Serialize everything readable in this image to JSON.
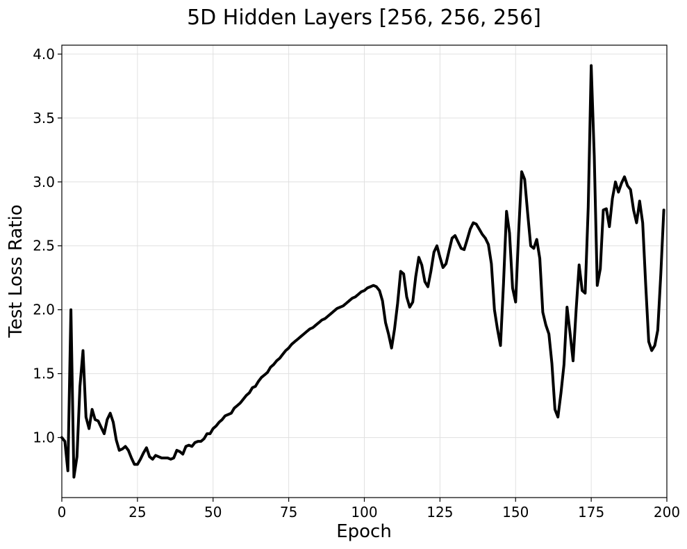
{
  "chart_data": {
    "type": "line",
    "title": "5D Hidden Layers [256, 256, 256]",
    "xlabel": "Epoch",
    "ylabel": "Test Loss Ratio",
    "xlim": [
      0,
      200
    ],
    "ylim": [
      0.53,
      4.07
    ],
    "xticks": [
      0,
      25,
      50,
      75,
      100,
      125,
      150,
      175,
      200
    ],
    "yticks": [
      1.0,
      1.5,
      2.0,
      2.5,
      3.0,
      3.5,
      4.0
    ],
    "ytick_labels": [
      "1.0",
      "1.5",
      "2.0",
      "2.5",
      "3.0",
      "3.5",
      "4.0"
    ],
    "grid": true,
    "line_color": "#000000",
    "series": [
      {
        "x": [
          0,
          1,
          2,
          3,
          4,
          5,
          6,
          7,
          8,
          9,
          10,
          11,
          12,
          13,
          14,
          15,
          16,
          17,
          18,
          19,
          20,
          21,
          22,
          23,
          24,
          25,
          26,
          27,
          28,
          29,
          30,
          31,
          32,
          33,
          34,
          35,
          36,
          37,
          38,
          39,
          40,
          41,
          42,
          43,
          44,
          45,
          46,
          47,
          48,
          49,
          50,
          51,
          52,
          53,
          54,
          55,
          56,
          57,
          58,
          59,
          60,
          61,
          62,
          63,
          64,
          65,
          66,
          67,
          68,
          69,
          70,
          71,
          72,
          73,
          74,
          75,
          76,
          77,
          78,
          79,
          80,
          81,
          82,
          83,
          84,
          85,
          86,
          87,
          88,
          89,
          90,
          91,
          92,
          93,
          94,
          95,
          96,
          97,
          98,
          99,
          100,
          101,
          102,
          103,
          104,
          105,
          106,
          107,
          108,
          109,
          110,
          111,
          112,
          113,
          114,
          115,
          116,
          117,
          118,
          119,
          120,
          121,
          122,
          123,
          124,
          125,
          126,
          127,
          128,
          129,
          130,
          131,
          132,
          133,
          134,
          135,
          136,
          137,
          138,
          139,
          140,
          141,
          142,
          143,
          144,
          145,
          146,
          147,
          148,
          149,
          150,
          151,
          152,
          153,
          154,
          155,
          156,
          157,
          158,
          159,
          160,
          161,
          162,
          163,
          164,
          165,
          166,
          167,
          168,
          169,
          170,
          171,
          172,
          173,
          174,
          175,
          176,
          177,
          178,
          179,
          180,
          181,
          182,
          183,
          184,
          185,
          186,
          187,
          188,
          189,
          190,
          191,
          192,
          193,
          194,
          195,
          196,
          197,
          198,
          199
        ],
        "y": [
          1.0,
          0.97,
          0.74,
          2.0,
          0.69,
          0.85,
          1.4,
          1.68,
          1.16,
          1.07,
          1.22,
          1.14,
          1.13,
          1.08,
          1.03,
          1.14,
          1.19,
          1.12,
          0.98,
          0.9,
          0.91,
          0.93,
          0.9,
          0.84,
          0.79,
          0.79,
          0.83,
          0.88,
          0.92,
          0.85,
          0.83,
          0.86,
          0.85,
          0.84,
          0.84,
          0.84,
          0.83,
          0.84,
          0.9,
          0.89,
          0.87,
          0.93,
          0.94,
          0.93,
          0.96,
          0.97,
          0.97,
          0.99,
          1.03,
          1.03,
          1.07,
          1.09,
          1.12,
          1.14,
          1.17,
          1.18,
          1.19,
          1.23,
          1.25,
          1.27,
          1.3,
          1.33,
          1.35,
          1.39,
          1.4,
          1.44,
          1.47,
          1.49,
          1.51,
          1.55,
          1.57,
          1.6,
          1.62,
          1.65,
          1.68,
          1.7,
          1.73,
          1.75,
          1.77,
          1.79,
          1.81,
          1.83,
          1.85,
          1.86,
          1.88,
          1.9,
          1.92,
          1.93,
          1.95,
          1.97,
          1.99,
          2.01,
          2.02,
          2.03,
          2.05,
          2.07,
          2.09,
          2.1,
          2.12,
          2.14,
          2.15,
          2.17,
          2.18,
          2.19,
          2.18,
          2.15,
          2.07,
          1.9,
          1.81,
          1.7,
          1.85,
          2.05,
          2.3,
          2.28,
          2.1,
          2.02,
          2.06,
          2.26,
          2.41,
          2.35,
          2.22,
          2.18,
          2.3,
          2.45,
          2.5,
          2.41,
          2.33,
          2.36,
          2.46,
          2.56,
          2.58,
          2.53,
          2.48,
          2.47,
          2.55,
          2.63,
          2.68,
          2.67,
          2.63,
          2.59,
          2.56,
          2.51,
          2.36,
          2.0,
          1.85,
          1.72,
          2.2,
          2.77,
          2.6,
          2.17,
          2.06,
          2.6,
          3.08,
          3.02,
          2.75,
          2.5,
          2.48,
          2.55,
          2.4,
          1.98,
          1.88,
          1.81,
          1.58,
          1.22,
          1.16,
          1.35,
          1.57,
          2.02,
          1.82,
          1.6,
          2.0,
          2.35,
          2.15,
          2.13,
          2.8,
          3.91,
          3.2,
          2.19,
          2.32,
          2.78,
          2.79,
          2.65,
          2.87,
          3.0,
          2.92,
          2.99,
          3.04,
          2.97,
          2.94,
          2.78,
          2.68,
          2.85,
          2.68,
          2.2,
          1.75,
          1.68,
          1.72,
          1.84,
          2.28,
          2.78
        ]
      }
    ]
  }
}
